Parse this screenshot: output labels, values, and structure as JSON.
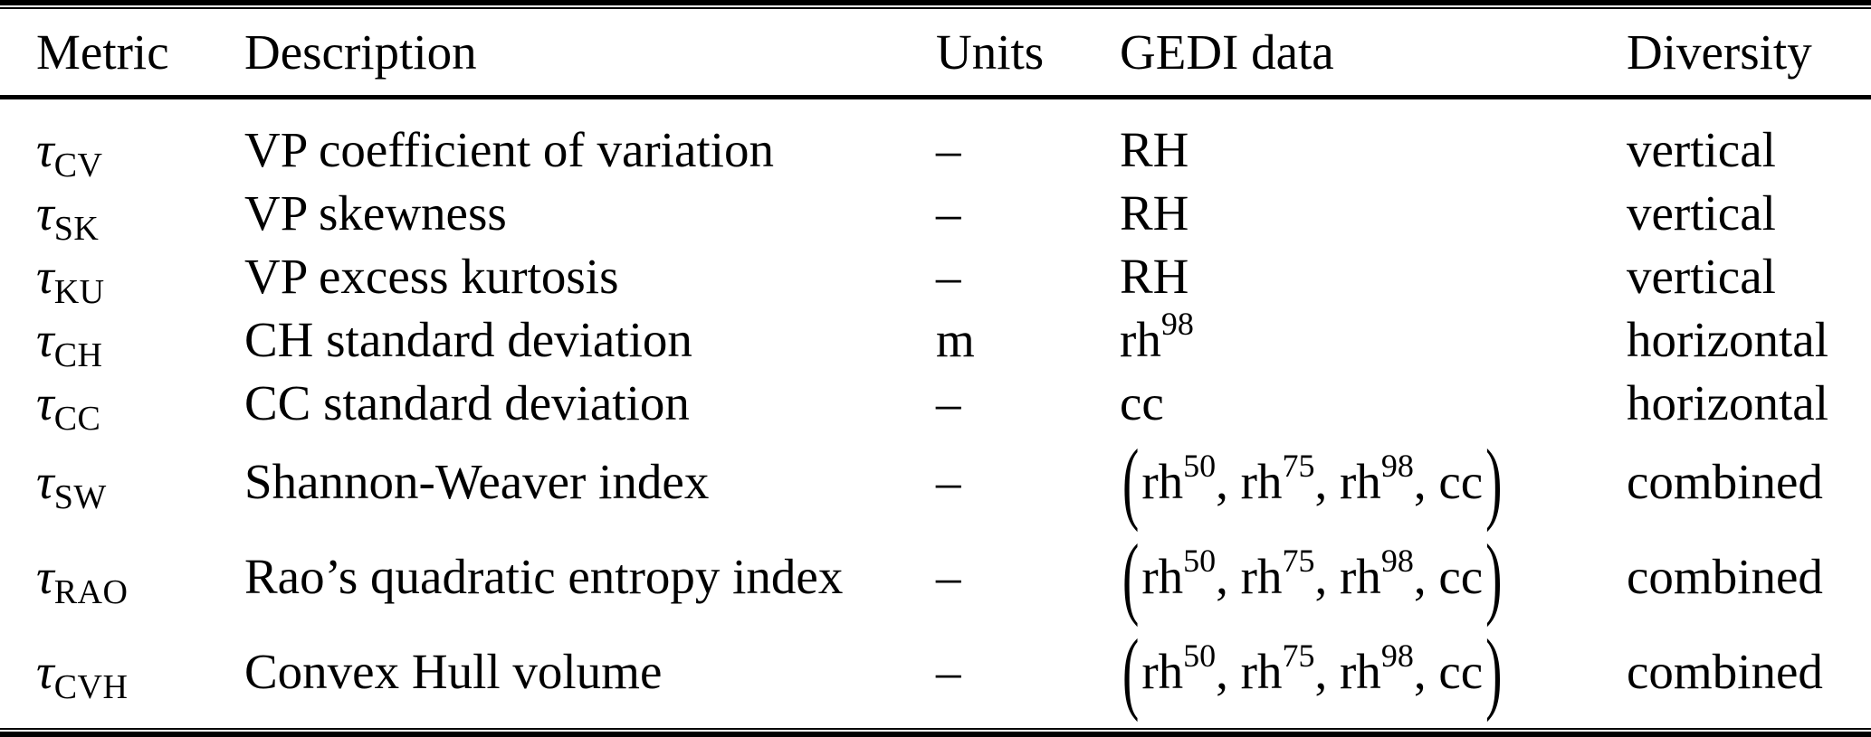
{
  "page": {
    "background_color": "#ffffff",
    "ink_color": "#000000"
  },
  "table": {
    "columns": [
      {
        "label": "Metric"
      },
      {
        "label": "Description"
      },
      {
        "label": "Units"
      },
      {
        "label": "GEDI data"
      },
      {
        "label": "Diversity"
      }
    ],
    "rows": [
      {
        "metric": {
          "base": "τ",
          "sub": "CV"
        },
        "description": "VP coefficient of variation",
        "units": "–",
        "gedi": [
          {
            "t": "text",
            "v": "RH"
          }
        ],
        "diversity": "vertical",
        "tall": false
      },
      {
        "metric": {
          "base": "τ",
          "sub": "SK"
        },
        "description": "VP skewness",
        "units": "–",
        "gedi": [
          {
            "t": "text",
            "v": "RH"
          }
        ],
        "diversity": "vertical",
        "tall": false
      },
      {
        "metric": {
          "base": "τ",
          "sub": "KU"
        },
        "description": "VP excess kurtosis",
        "units": "–",
        "gedi": [
          {
            "t": "text",
            "v": "RH"
          }
        ],
        "diversity": "vertical",
        "tall": false
      },
      {
        "metric": {
          "base": "τ",
          "sub": "CH"
        },
        "description": "CH standard deviation",
        "units": "m",
        "gedi": [
          {
            "t": "text",
            "v": "rh"
          },
          {
            "t": "sup",
            "v": "98"
          }
        ],
        "diversity": "horizontal",
        "tall": false
      },
      {
        "metric": {
          "base": "τ",
          "sub": "CC"
        },
        "description": "CC standard deviation",
        "units": "–",
        "gedi": [
          {
            "t": "text",
            "v": "cc"
          }
        ],
        "diversity": "horizontal",
        "tall": false
      },
      {
        "metric": {
          "base": "τ",
          "sub": "SW"
        },
        "description": "Shannon-Weaver index",
        "units": "–",
        "gedi": [
          {
            "t": "paren",
            "v": "("
          },
          {
            "t": "text",
            "v": "rh"
          },
          {
            "t": "sup",
            "v": "50"
          },
          {
            "t": "text",
            "v": ", rh"
          },
          {
            "t": "sup",
            "v": "75"
          },
          {
            "t": "text",
            "v": ", rh"
          },
          {
            "t": "sup",
            "v": "98"
          },
          {
            "t": "text",
            "v": ", cc"
          },
          {
            "t": "paren",
            "v": ")"
          }
        ],
        "diversity": "combined",
        "tall": true
      },
      {
        "metric": {
          "base": "τ",
          "sub": "RAO"
        },
        "description": "Rao’s quadratic entropy index",
        "units": "–",
        "gedi": [
          {
            "t": "paren",
            "v": "("
          },
          {
            "t": "text",
            "v": "rh"
          },
          {
            "t": "sup",
            "v": "50"
          },
          {
            "t": "text",
            "v": ", rh"
          },
          {
            "t": "sup",
            "v": "75"
          },
          {
            "t": "text",
            "v": ", rh"
          },
          {
            "t": "sup",
            "v": "98"
          },
          {
            "t": "text",
            "v": ", cc"
          },
          {
            "t": "paren",
            "v": ")"
          }
        ],
        "diversity": "combined",
        "tall": true
      },
      {
        "metric": {
          "base": "τ",
          "sub": "CVH"
        },
        "description": "Convex Hull volume",
        "units": "–",
        "gedi": [
          {
            "t": "paren",
            "v": "("
          },
          {
            "t": "text",
            "v": "rh"
          },
          {
            "t": "sup",
            "v": "50"
          },
          {
            "t": "text",
            "v": ", rh"
          },
          {
            "t": "sup",
            "v": "75"
          },
          {
            "t": "text",
            "v": ", rh"
          },
          {
            "t": "sup",
            "v": "98"
          },
          {
            "t": "text",
            "v": ", cc"
          },
          {
            "t": "paren",
            "v": ")"
          }
        ],
        "diversity": "combined",
        "tall": true
      }
    ]
  }
}
